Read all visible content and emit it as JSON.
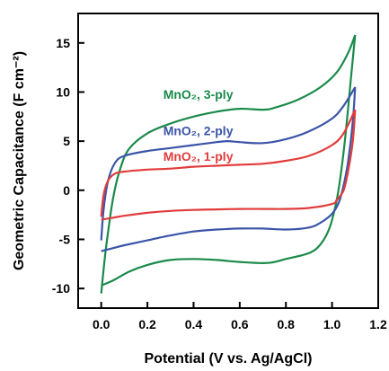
{
  "chart_data": {
    "type": "line",
    "xlabel": "Potential (V vs. Ag/AgCl)",
    "ylabel": "Geometric Capacitance (F cm⁻²)",
    "xlim": [
      -0.1,
      1.2
    ],
    "ylim": [
      -12,
      18
    ],
    "xticks": [
      "0.0",
      "0.2",
      "0.4",
      "0.6",
      "0.8",
      "1.0",
      "1.2"
    ],
    "yticks": [
      "-10",
      "-5",
      "0",
      "5",
      "10",
      "15"
    ],
    "grid": false,
    "legend": "inline-labels",
    "series": [
      {
        "name": "MnO₂, 3-ply",
        "color": "#1a8a4a",
        "label_pos": [
          0.42,
          9.3
        ],
        "forward": [
          [
            0.0,
            -10.5
          ],
          [
            0.02,
            -6
          ],
          [
            0.05,
            -1
          ],
          [
            0.08,
            2
          ],
          [
            0.12,
            4.2
          ],
          [
            0.2,
            5.8
          ],
          [
            0.3,
            6.8
          ],
          [
            0.4,
            7.5
          ],
          [
            0.5,
            8
          ],
          [
            0.6,
            8.3
          ],
          [
            0.7,
            8.2
          ],
          [
            0.75,
            8.4
          ],
          [
            0.85,
            9.2
          ],
          [
            0.95,
            10.5
          ],
          [
            1.02,
            12
          ],
          [
            1.07,
            14
          ],
          [
            1.1,
            15.8
          ]
        ],
        "reverse": [
          [
            1.1,
            15.8
          ],
          [
            1.08,
            11
          ],
          [
            1.06,
            6
          ],
          [
            1.04,
            2
          ],
          [
            1.02,
            -1
          ],
          [
            0.99,
            -3.8
          ],
          [
            0.95,
            -5.5
          ],
          [
            0.9,
            -6.4
          ],
          [
            0.8,
            -7
          ],
          [
            0.72,
            -7.4
          ],
          [
            0.6,
            -7.3
          ],
          [
            0.5,
            -7.1
          ],
          [
            0.4,
            -7
          ],
          [
            0.3,
            -7.1
          ],
          [
            0.2,
            -7.6
          ],
          [
            0.12,
            -8.3
          ],
          [
            0.05,
            -9.2
          ],
          [
            0.0,
            -9.7
          ]
        ]
      },
      {
        "name": "MnO₂, 2-ply",
        "color": "#3b54a8",
        "label_pos": [
          0.42,
          5.6
        ],
        "forward": [
          [
            0.0,
            -5.1
          ],
          [
            0.01,
            -2
          ],
          [
            0.03,
            1
          ],
          [
            0.06,
            2.8
          ],
          [
            0.1,
            3.5
          ],
          [
            0.2,
            4
          ],
          [
            0.3,
            4.3
          ],
          [
            0.4,
            4.6
          ],
          [
            0.5,
            4.9
          ],
          [
            0.55,
            5
          ],
          [
            0.6,
            4.9
          ],
          [
            0.7,
            4.8
          ],
          [
            0.8,
            5.2
          ],
          [
            0.9,
            6
          ],
          [
            1.0,
            7.3
          ],
          [
            1.05,
            8.6
          ],
          [
            1.1,
            10.5
          ]
        ],
        "reverse": [
          [
            1.1,
            10.5
          ],
          [
            1.09,
            7
          ],
          [
            1.07,
            3
          ],
          [
            1.05,
            0.5
          ],
          [
            1.03,
            -1.2
          ],
          [
            1.0,
            -2.4
          ],
          [
            0.95,
            -3.3
          ],
          [
            0.9,
            -3.8
          ],
          [
            0.8,
            -4
          ],
          [
            0.7,
            -3.9
          ],
          [
            0.6,
            -3.9
          ],
          [
            0.5,
            -4
          ],
          [
            0.4,
            -4.2
          ],
          [
            0.3,
            -4.6
          ],
          [
            0.2,
            -5.1
          ],
          [
            0.1,
            -5.6
          ],
          [
            0.05,
            -5.9
          ],
          [
            0.0,
            -6.2
          ]
        ]
      },
      {
        "name": "MnO₂, 1-ply",
        "color": "#e23b3b",
        "label_pos": [
          0.42,
          3.0
        ],
        "forward": [
          [
            0.0,
            -2.7
          ],
          [
            0.01,
            -0.5
          ],
          [
            0.03,
            1.0
          ],
          [
            0.06,
            1.7
          ],
          [
            0.1,
            1.9
          ],
          [
            0.2,
            2.1
          ],
          [
            0.3,
            2.2
          ],
          [
            0.4,
            2.4
          ],
          [
            0.5,
            2.5
          ],
          [
            0.6,
            2.6
          ],
          [
            0.7,
            2.7
          ],
          [
            0.8,
            3
          ],
          [
            0.9,
            3.5
          ],
          [
            1.0,
            4.6
          ],
          [
            1.05,
            5.8
          ],
          [
            1.1,
            8.2
          ]
        ],
        "reverse": [
          [
            1.1,
            8.2
          ],
          [
            1.09,
            5
          ],
          [
            1.07,
            2
          ],
          [
            1.05,
            0
          ],
          [
            1.02,
            -1
          ],
          [
            1.0,
            -1.4
          ],
          [
            0.9,
            -1.8
          ],
          [
            0.8,
            -1.9
          ],
          [
            0.7,
            -1.9
          ],
          [
            0.6,
            -1.9
          ],
          [
            0.5,
            -1.95
          ],
          [
            0.4,
            -2
          ],
          [
            0.3,
            -2.1
          ],
          [
            0.2,
            -2.3
          ],
          [
            0.1,
            -2.6
          ],
          [
            0.05,
            -2.8
          ],
          [
            0.0,
            -3
          ]
        ]
      }
    ]
  }
}
